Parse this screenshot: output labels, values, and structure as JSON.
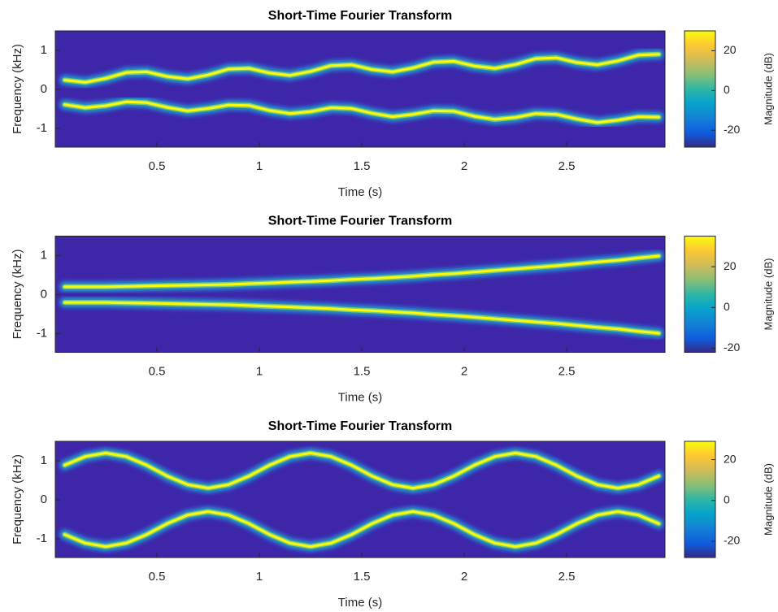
{
  "chart_data": [
    {
      "type": "spectrogram",
      "title": "Short-Time Fourier Transform",
      "xlabel": "Time (s)",
      "ylabel": "Frequency (kHz)",
      "xlim": [
        0.004,
        2.98
      ],
      "ylim": [
        -1.48,
        1.5
      ],
      "xticks": [
        0.5,
        1,
        1.5,
        2,
        2.5
      ],
      "yticks": [
        -1,
        0,
        1
      ],
      "x": [
        0.05,
        0.15,
        0.25,
        0.35,
        0.45,
        0.55,
        0.65,
        0.75,
        0.85,
        0.95,
        1.05,
        1.15,
        1.25,
        1.35,
        1.45,
        1.55,
        1.65,
        1.75,
        1.85,
        1.95,
        2.05,
        2.15,
        2.25,
        2.35,
        2.45,
        2.55,
        2.65,
        2.75,
        2.85,
        2.95
      ],
      "series": [
        {
          "values": [
            0.24,
            0.18,
            0.28,
            0.43,
            0.45,
            0.33,
            0.27,
            0.37,
            0.52,
            0.54,
            0.42,
            0.36,
            0.46,
            0.61,
            0.63,
            0.51,
            0.45,
            0.55,
            0.7,
            0.72,
            0.6,
            0.54,
            0.64,
            0.79,
            0.81,
            0.69,
            0.63,
            0.73,
            0.88,
            0.9
          ]
        },
        {
          "values": [
            -0.39,
            -0.47,
            -0.42,
            -0.32,
            -0.34,
            -0.46,
            -0.55,
            -0.49,
            -0.4,
            -0.41,
            -0.54,
            -0.62,
            -0.57,
            -0.47,
            -0.49,
            -0.61,
            -0.7,
            -0.64,
            -0.55,
            -0.56,
            -0.69,
            -0.77,
            -0.72,
            -0.62,
            -0.64,
            -0.76,
            -0.85,
            -0.79,
            -0.7,
            -0.71
          ]
        }
      ],
      "colorbar": {
        "label": "Magnitude (dB)",
        "clim": [
          -28.5,
          30
        ],
        "cticks": [
          -20,
          0,
          20
        ]
      }
    },
    {
      "type": "spectrogram",
      "title": "Short-Time Fourier Transform",
      "xlabel": "Time (s)",
      "ylabel": "Frequency (kHz)",
      "xlim": [
        0.004,
        2.98
      ],
      "ylim": [
        -1.48,
        1.5
      ],
      "xticks": [
        0.5,
        1,
        1.5,
        2,
        2.5
      ],
      "yticks": [
        -1,
        0,
        1
      ],
      "x": [
        0.05,
        0.15,
        0.25,
        0.35,
        0.45,
        0.55,
        0.65,
        0.75,
        0.85,
        0.95,
        1.05,
        1.15,
        1.25,
        1.35,
        1.45,
        1.55,
        1.65,
        1.75,
        1.85,
        1.95,
        2.05,
        2.15,
        2.25,
        2.35,
        2.45,
        2.55,
        2.65,
        2.75,
        2.85,
        2.95
      ],
      "series": [
        {
          "values": [
            0.2,
            0.2,
            0.2,
            0.21,
            0.22,
            0.23,
            0.24,
            0.25,
            0.26,
            0.28,
            0.3,
            0.32,
            0.34,
            0.36,
            0.39,
            0.41,
            0.44,
            0.47,
            0.51,
            0.54,
            0.58,
            0.62,
            0.66,
            0.7,
            0.74,
            0.79,
            0.84,
            0.88,
            0.94,
            0.99
          ]
        },
        {
          "values": [
            -0.2,
            -0.2,
            -0.2,
            -0.21,
            -0.22,
            -0.23,
            -0.24,
            -0.25,
            -0.26,
            -0.28,
            -0.3,
            -0.32,
            -0.34,
            -0.36,
            -0.39,
            -0.41,
            -0.44,
            -0.47,
            -0.51,
            -0.54,
            -0.58,
            -0.62,
            -0.66,
            -0.7,
            -0.74,
            -0.79,
            -0.84,
            -0.88,
            -0.94,
            -0.99
          ]
        }
      ],
      "colorbar": {
        "label": "Magnitude (dB)",
        "clim": [
          -22,
          35
        ],
        "cticks": [
          -20,
          0,
          20
        ]
      }
    },
    {
      "type": "spectrogram",
      "title": "Short-Time Fourier Transform",
      "xlabel": "Time (s)",
      "ylabel": "Frequency (kHz)",
      "xlim": [
        0.004,
        2.98
      ],
      "ylim": [
        -1.48,
        1.5
      ],
      "xticks": [
        0.5,
        1,
        1.5,
        2,
        2.5
      ],
      "yticks": [
        -1,
        0,
        1
      ],
      "x": [
        0.05,
        0.15,
        0.25,
        0.35,
        0.45,
        0.55,
        0.65,
        0.75,
        0.85,
        0.95,
        1.05,
        1.15,
        1.25,
        1.35,
        1.45,
        1.55,
        1.65,
        1.75,
        1.85,
        1.95,
        2.05,
        2.15,
        2.25,
        2.35,
        2.45,
        2.55,
        2.65,
        2.75,
        2.85,
        2.95
      ],
      "series": [
        {
          "values": [
            0.89,
            1.11,
            1.2,
            1.11,
            0.89,
            0.61,
            0.39,
            0.3,
            0.39,
            0.61,
            0.89,
            1.11,
            1.2,
            1.11,
            0.89,
            0.61,
            0.39,
            0.3,
            0.39,
            0.61,
            0.89,
            1.11,
            1.2,
            1.11,
            0.89,
            0.61,
            0.39,
            0.3,
            0.39,
            0.61
          ]
        },
        {
          "values": [
            -0.89,
            -1.11,
            -1.2,
            -1.11,
            -0.89,
            -0.61,
            -0.39,
            -0.3,
            -0.39,
            -0.61,
            -0.89,
            -1.11,
            -1.2,
            -1.11,
            -0.89,
            -0.61,
            -0.39,
            -0.3,
            -0.39,
            -0.61,
            -0.89,
            -1.11,
            -1.2,
            -1.11,
            -0.89,
            -0.61,
            -0.39,
            -0.3,
            -0.39,
            -0.61
          ]
        }
      ],
      "colorbar": {
        "label": "Magnitude (dB)",
        "clim": [
          -28,
          29
        ],
        "cticks": [
          -20,
          0,
          20
        ]
      }
    }
  ]
}
